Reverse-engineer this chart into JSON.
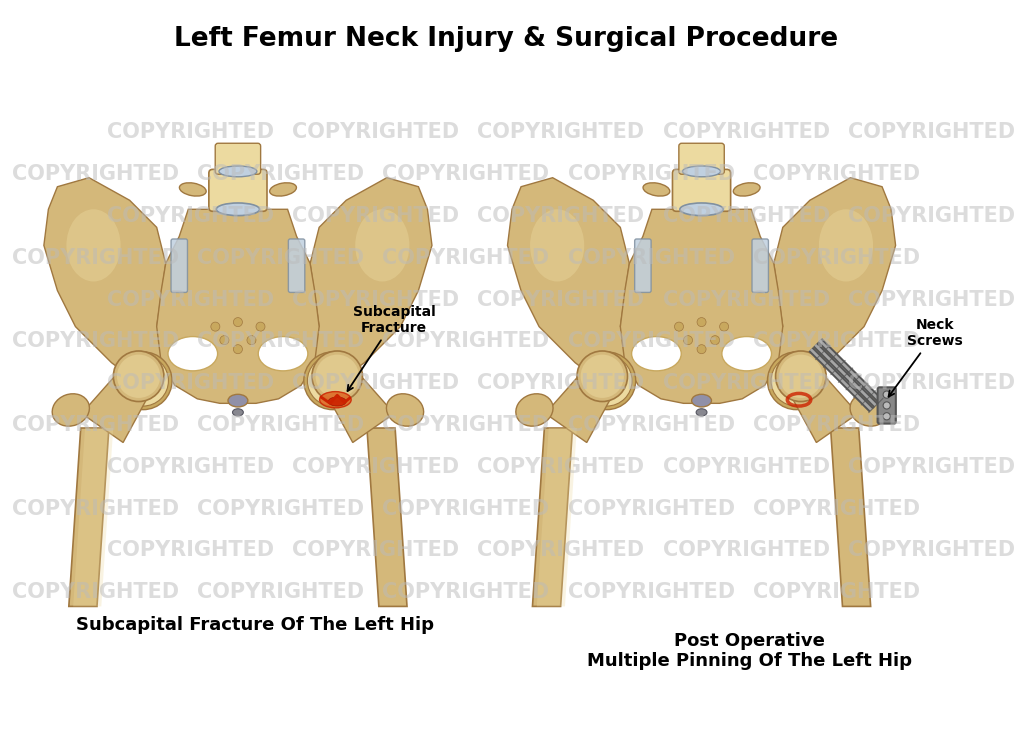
{
  "title": "Left Femur Neck Injury & Surgical Procedure",
  "title_fontsize": 19,
  "title_fontweight": "bold",
  "background_color": "#ffffff",
  "watermark_text": "COPYRIGHTED",
  "watermark_color": "#bbbbbb",
  "watermark_alpha": 0.5,
  "watermark_fontsize": 15,
  "watermark_fontweight": "bold",
  "caption_left": "Subcapital Fracture Of The Left Hip",
  "caption_right_line1": "Post Operative",
  "caption_right_line2": "Multiple Pinning Of The Left Hip",
  "caption_fontsize": 13,
  "caption_fontweight": "bold",
  "annotation_fontsize": 10,
  "annotation_fontweight": "bold",
  "bone_base": "#d4b87a",
  "bone_mid": "#c8a85e",
  "bone_dark": "#a07840",
  "bone_light": "#ecdaa0",
  "bone_highlight": "#f5eacc",
  "fracture_red": "#cc2200",
  "fracture_orange": "#dd6622",
  "metal_dark": "#555555",
  "metal_mid": "#888888",
  "metal_light": "#bbbbbb",
  "metal_highlight": "#dddddd",
  "disc_color": "#c0d0e0",
  "disc_edge": "#8090a0",
  "pubic_disc": "#9090a8"
}
